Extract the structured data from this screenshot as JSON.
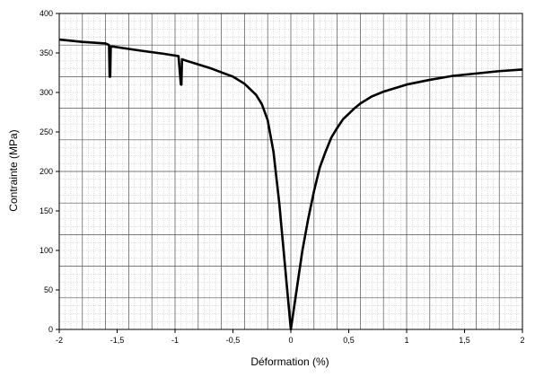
{
  "chart_data": {
    "type": "line",
    "title": "",
    "xlabel": "Déformation (%)",
    "ylabel": "Contrainte (MPa)",
    "xlim": [
      -2,
      2
    ],
    "ylim": [
      0,
      400
    ],
    "x_ticks": [
      -2,
      -1.5,
      -1,
      -0.5,
      0,
      0.5,
      1,
      1.5,
      2
    ],
    "x_tick_labels": [
      "-2",
      "-1,5",
      "-1",
      "-0,5",
      "0",
      "0,5",
      "1",
      "1,5",
      "2"
    ],
    "y_ticks": [
      0,
      50,
      100,
      150,
      200,
      250,
      300,
      350,
      400
    ],
    "y_tick_labels": [
      "0",
      "50",
      "100",
      "150",
      "200",
      "250",
      "300",
      "350",
      "400"
    ],
    "grid": true,
    "legend": "none",
    "line_color": "#000000",
    "series": [
      {
        "x": [
          -2,
          -1.8,
          -1.6,
          -1.57,
          -1.565,
          -1.56,
          -1.555,
          -1.53,
          -1.3,
          -1.1,
          -0.97,
          -0.95,
          -0.945,
          -0.94,
          -0.9,
          -0.7,
          -0.5,
          -0.4,
          -0.3,
          -0.25,
          -0.2,
          -0.15,
          -0.1,
          -0.05,
          0,
          0.05,
          0.1,
          0.15,
          0.2,
          0.25,
          0.3,
          0.35,
          0.4,
          0.45,
          0.5,
          0.55,
          0.6,
          0.7,
          0.8,
          1,
          1.2,
          1.4,
          1.6,
          1.8,
          2
        ],
        "y": [
          367,
          364,
          362,
          360,
          320,
          320,
          358,
          358,
          353,
          349,
          346,
          310,
          310,
          342,
          340,
          331,
          320,
          311,
          297,
          285,
          265,
          225,
          160,
          80,
          0,
          50,
          100,
          140,
          175,
          205,
          225,
          243,
          255,
          266,
          273,
          280,
          286,
          295,
          301,
          310,
          316,
          321,
          324,
          327,
          329
        ]
      }
    ]
  }
}
